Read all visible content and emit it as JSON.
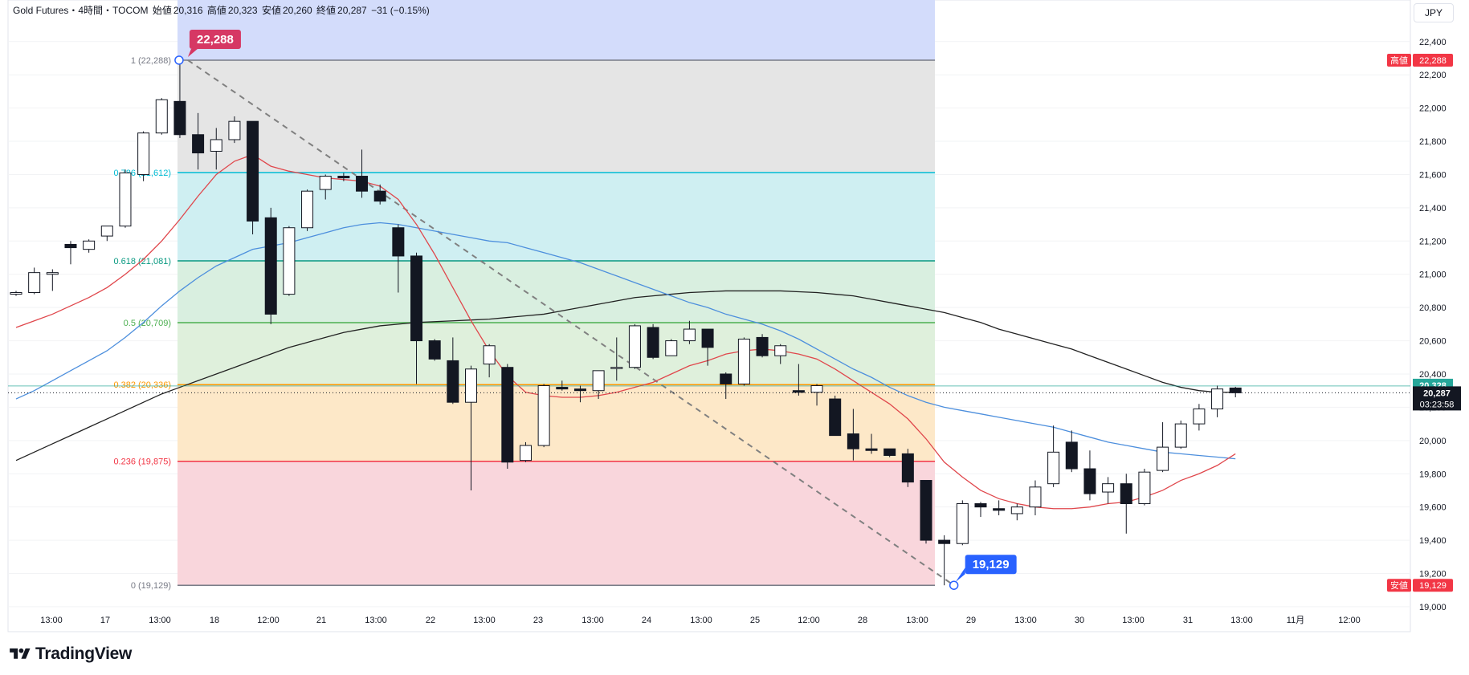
{
  "header": {
    "symbol": "Gold Futures・4時間・TOCOM",
    "open_label": "始値",
    "open_value": "20,316",
    "high_label": "高値",
    "high_value": "20,323",
    "low_label": "安値",
    "low_value": "20,260",
    "close_label": "終値",
    "close_value": "20,287",
    "change": "−31 (−0.15%)"
  },
  "currency_label": "JPY",
  "logo_text": "TradingView",
  "colors": {
    "fib_1_to_786": "#e5e5e5",
    "fib_786_to_618": "#cfeff2",
    "fib_618_to_5": "#d9efe0",
    "fib_5_to_382": "#dff0dc",
    "fib_382_to_236": "#fde8c8",
    "fib_236_to_0": "#f9d6dc",
    "fib_top_shade": "#d3dcfb",
    "ma_red": "#e0474c",
    "ma_blue": "#4d8fdd",
    "ma_black": "#222222",
    "candle_up": "#ffffff",
    "candle_down": "#131722",
    "high_badge": "#d63864",
    "low_badge": "#2962ff"
  },
  "chart_data": {
    "type": "candlestick",
    "title": "Gold Futures・4時間・TOCOM",
    "ylim": [
      18850,
      22650
    ],
    "y_ticks": [
      19000,
      19200,
      19400,
      19600,
      19800,
      20000,
      20200,
      20400,
      20600,
      20800,
      21000,
      21200,
      21400,
      21600,
      21800,
      22000,
      22200,
      22400
    ],
    "y_tick_labels": [
      "19,000",
      "19,200",
      "19,400",
      "19,600",
      "19,800",
      "20,000",
      "20,200",
      "20,400",
      "20,600",
      "20,800",
      "21,000",
      "21,200",
      "21,400",
      "21,600",
      "21,800",
      "22,000",
      "22,200",
      "22,400"
    ],
    "x_tick_labels": [
      "13:00",
      "17",
      "13:00",
      "18",
      "12:00",
      "21",
      "13:00",
      "22",
      "13:00",
      "23",
      "13:00",
      "24",
      "13:00",
      "25",
      "12:00",
      "28",
      "13:00",
      "29",
      "13:00",
      "30",
      "13:00",
      "31",
      "13:00",
      "11月",
      "12:00"
    ],
    "candles": [
      {
        "o": 20880,
        "h": 20900,
        "l": 20870,
        "c": 20890
      },
      {
        "o": 20890,
        "h": 21040,
        "l": 20880,
        "c": 21010
      },
      {
        "o": 21000,
        "h": 21030,
        "l": 20900,
        "c": 21010
      },
      {
        "o": 21180,
        "h": 21200,
        "l": 21060,
        "c": 21160
      },
      {
        "o": 21150,
        "h": 21210,
        "l": 21130,
        "c": 21200
      },
      {
        "o": 21230,
        "h": 21260,
        "l": 21200,
        "c": 21290
      },
      {
        "o": 21290,
        "h": 21630,
        "l": 21280,
        "c": 21610
      },
      {
        "o": 21600,
        "h": 21860,
        "l": 21560,
        "c": 21850
      },
      {
        "o": 21850,
        "h": 22060,
        "l": 21840,
        "c": 22050
      },
      {
        "o": 22040,
        "h": 22288,
        "l": 21820,
        "c": 21840
      },
      {
        "o": 21840,
        "h": 21970,
        "l": 21630,
        "c": 21730
      },
      {
        "o": 21740,
        "h": 21880,
        "l": 21630,
        "c": 21810
      },
      {
        "o": 21810,
        "h": 21950,
        "l": 21790,
        "c": 21920
      },
      {
        "o": 21920,
        "h": 21920,
        "l": 21240,
        "c": 21320
      },
      {
        "o": 21340,
        "h": 21400,
        "l": 20700,
        "c": 20760
      },
      {
        "o": 20880,
        "h": 21290,
        "l": 20870,
        "c": 21280
      },
      {
        "o": 21280,
        "h": 21510,
        "l": 21260,
        "c": 21500
      },
      {
        "o": 21510,
        "h": 21600,
        "l": 21450,
        "c": 21590
      },
      {
        "o": 21590,
        "h": 21610,
        "l": 21560,
        "c": 21580
      },
      {
        "o": 21590,
        "h": 21750,
        "l": 21460,
        "c": 21500
      },
      {
        "o": 21500,
        "h": 21540,
        "l": 21420,
        "c": 21440
      },
      {
        "o": 21280,
        "h": 21300,
        "l": 20890,
        "c": 21110
      },
      {
        "o": 21110,
        "h": 21130,
        "l": 20340,
        "c": 20600
      },
      {
        "o": 20600,
        "h": 20610,
        "l": 20480,
        "c": 20490
      },
      {
        "o": 20480,
        "h": 20620,
        "l": 20220,
        "c": 20230
      },
      {
        "o": 20230,
        "h": 20450,
        "l": 19700,
        "c": 20430
      },
      {
        "o": 20460,
        "h": 20580,
        "l": 20380,
        "c": 20570
      },
      {
        "o": 20440,
        "h": 20460,
        "l": 19830,
        "c": 19870
      },
      {
        "o": 19880,
        "h": 19990,
        "l": 19870,
        "c": 19970
      },
      {
        "o": 19970,
        "h": 20340,
        "l": 19960,
        "c": 20330
      },
      {
        "o": 20320,
        "h": 20360,
        "l": 20300,
        "c": 20310
      },
      {
        "o": 20310,
        "h": 20330,
        "l": 20230,
        "c": 20300
      },
      {
        "o": 20300,
        "h": 20420,
        "l": 20250,
        "c": 20420
      },
      {
        "o": 20440,
        "h": 20620,
        "l": 20360,
        "c": 20440
      },
      {
        "o": 20440,
        "h": 20700,
        "l": 20430,
        "c": 20690
      },
      {
        "o": 20680,
        "h": 20700,
        "l": 20490,
        "c": 20500
      },
      {
        "o": 20510,
        "h": 20610,
        "l": 20510,
        "c": 20600
      },
      {
        "o": 20600,
        "h": 20720,
        "l": 20580,
        "c": 20670
      },
      {
        "o": 20670,
        "h": 20670,
        "l": 20450,
        "c": 20560
      },
      {
        "o": 20400,
        "h": 20410,
        "l": 20250,
        "c": 20340
      },
      {
        "o": 20340,
        "h": 20620,
        "l": 20330,
        "c": 20610
      },
      {
        "o": 20620,
        "h": 20640,
        "l": 20500,
        "c": 20510
      },
      {
        "o": 20510,
        "h": 20580,
        "l": 20460,
        "c": 20570
      },
      {
        "o": 20300,
        "h": 20460,
        "l": 20270,
        "c": 20290
      },
      {
        "o": 20290,
        "h": 20340,
        "l": 20210,
        "c": 20330
      },
      {
        "o": 20250,
        "h": 20270,
        "l": 20030,
        "c": 20030
      },
      {
        "o": 20040,
        "h": 20190,
        "l": 19880,
        "c": 19950
      },
      {
        "o": 19950,
        "h": 20040,
        "l": 19920,
        "c": 19940
      },
      {
        "o": 19950,
        "h": 19950,
        "l": 19900,
        "c": 19910
      },
      {
        "o": 19920,
        "h": 19950,
        "l": 19720,
        "c": 19750
      },
      {
        "o": 19760,
        "h": 19760,
        "l": 19380,
        "c": 19400
      },
      {
        "o": 19400,
        "h": 19430,
        "l": 19129,
        "c": 19380
      },
      {
        "o": 19380,
        "h": 19640,
        "l": 19370,
        "c": 19620
      },
      {
        "o": 19620,
        "h": 19630,
        "l": 19540,
        "c": 19600
      },
      {
        "o": 19590,
        "h": 19640,
        "l": 19550,
        "c": 19580
      },
      {
        "o": 19560,
        "h": 19620,
        "l": 19520,
        "c": 19600
      },
      {
        "o": 19600,
        "h": 19760,
        "l": 19550,
        "c": 19720
      },
      {
        "o": 19740,
        "h": 20090,
        "l": 19720,
        "c": 19930
      },
      {
        "o": 19990,
        "h": 20060,
        "l": 19810,
        "c": 19830
      },
      {
        "o": 19830,
        "h": 19940,
        "l": 19640,
        "c": 19680
      },
      {
        "o": 19690,
        "h": 19780,
        "l": 19620,
        "c": 19740
      },
      {
        "o": 19740,
        "h": 19800,
        "l": 19440,
        "c": 19620
      },
      {
        "o": 19620,
        "h": 19830,
        "l": 19610,
        "c": 19810
      },
      {
        "o": 19820,
        "h": 20110,
        "l": 19810,
        "c": 19960
      },
      {
        "o": 19960,
        "h": 20120,
        "l": 19950,
        "c": 20100
      },
      {
        "o": 20100,
        "h": 20220,
        "l": 20060,
        "c": 20190
      },
      {
        "o": 20190,
        "h": 20330,
        "l": 20140,
        "c": 20310
      },
      {
        "o": 20316,
        "h": 20323,
        "l": 20260,
        "c": 20287
      }
    ],
    "ma_red": [
      20680,
      20720,
      20760,
      20810,
      20860,
      20920,
      21000,
      21090,
      21200,
      21330,
      21470,
      21600,
      21680,
      21720,
      21650,
      21620,
      21600,
      21580,
      21570,
      21560,
      21530,
      21450,
      21300,
      21120,
      20920,
      20720,
      20540,
      20390,
      20290,
      20270,
      20260,
      20260,
      20270,
      20290,
      20320,
      20350,
      20400,
      20450,
      20480,
      20520,
      20540,
      20550,
      20540,
      20520,
      20490,
      20430,
      20360,
      20290,
      20220,
      20130,
      20010,
      19870,
      19780,
      19700,
      19650,
      19620,
      19600,
      19590,
      19590,
      19600,
      19620,
      19630,
      19660,
      19700,
      19760,
      19800,
      19850,
      19920
    ],
    "ma_blue": [
      20250,
      20300,
      20360,
      20420,
      20480,
      20540,
      20620,
      20710,
      20810,
      20900,
      20980,
      21050,
      21100,
      21150,
      21170,
      21190,
      21220,
      21250,
      21280,
      21300,
      21310,
      21300,
      21280,
      21260,
      21240,
      21220,
      21200,
      21190,
      21160,
      21130,
      21100,
      21070,
      21030,
      20990,
      20950,
      20910,
      20870,
      20830,
      20800,
      20760,
      20730,
      20700,
      20660,
      20610,
      20550,
      20490,
      20430,
      20380,
      20320,
      20270,
      20230,
      20200,
      20180,
      20160,
      20140,
      20120,
      20100,
      20080,
      20050,
      20020,
      19990,
      19970,
      19950,
      19930,
      19920,
      19910,
      19900,
      19890
    ],
    "ma_black": [
      19880,
      19930,
      19980,
      20030,
      20080,
      20130,
      20180,
      20230,
      20280,
      20320,
      20360,
      20400,
      20440,
      20480,
      20520,
      20560,
      20590,
      20620,
      20650,
      20670,
      20690,
      20700,
      20710,
      20715,
      20720,
      20725,
      20730,
      20740,
      20750,
      20760,
      20780,
      20800,
      20820,
      20840,
      20860,
      20870,
      20880,
      20890,
      20895,
      20900,
      20900,
      20900,
      20900,
      20895,
      20890,
      20880,
      20870,
      20850,
      20830,
      20810,
      20790,
      20770,
      20740,
      20710,
      20670,
      20640,
      20610,
      20580,
      20550,
      20510,
      20470,
      20430,
      20390,
      20350,
      20320,
      20300,
      20290,
      20290
    ],
    "fib_levels": [
      {
        "ratio": "1",
        "value": 22288,
        "label": "1 (22,288)",
        "color": "#787b86"
      },
      {
        "ratio": "0.786",
        "value": 21612,
        "label": "0.786 (21,612)",
        "color": "#00bcd4"
      },
      {
        "ratio": "0.618",
        "value": 21081,
        "label": "0.618 (21,081)",
        "color": "#089981"
      },
      {
        "ratio": "0.5",
        "value": 20709,
        "label": "0.5 (20,709)",
        "color": "#4caf50"
      },
      {
        "ratio": "0.382",
        "value": 20336,
        "label": "0.382 (20,336)",
        "color": "#ff9800"
      },
      {
        "ratio": "0.236",
        "value": 19875,
        "label": "0.236 (19,875)",
        "color": "#f23645"
      },
      {
        "ratio": "0",
        "value": 19129,
        "label": "0 (19,129)",
        "color": "#787b86"
      }
    ],
    "swing_high": {
      "candle_index": 9,
      "value": 22288,
      "label": "22,288"
    },
    "swing_low": {
      "candle_index": 51,
      "value": 19129,
      "label": "19,129"
    },
    "price_tags": {
      "high": {
        "title": "高値",
        "value": "22,288",
        "v": 22288
      },
      "low": {
        "title": "安値",
        "value": "19,129",
        "v": 19129
      },
      "level": {
        "value": "20,328",
        "v": 20328
      },
      "last": {
        "value": "20,287",
        "time": "03:23:58",
        "v": 20287
      }
    }
  }
}
